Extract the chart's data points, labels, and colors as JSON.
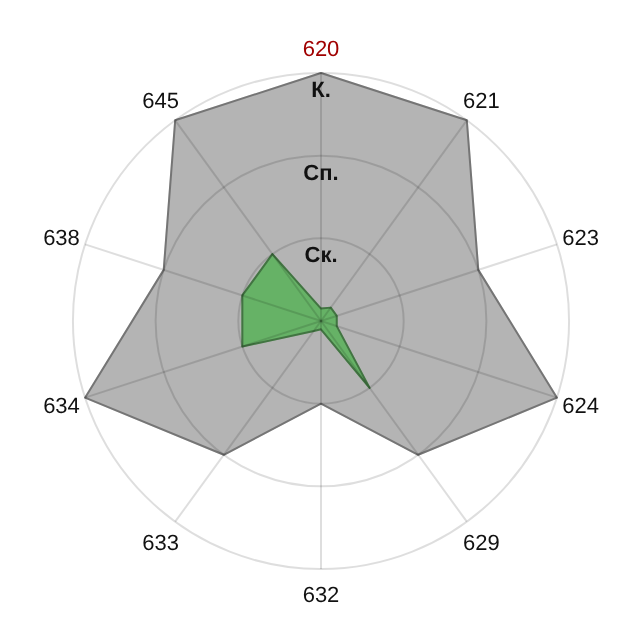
{
  "chart_data": {
    "type": "radar",
    "categories": [
      "620",
      "621",
      "623",
      "624",
      "629",
      "632",
      "633",
      "634",
      "638",
      "645"
    ],
    "series": [
      {
        "color": "#b4b4b4",
        "values": [
          3,
          3,
          2,
          3,
          2,
          1,
          2,
          3,
          2,
          3
        ]
      },
      {
        "color": "#66b266",
        "values": [
          0.15,
          0.2,
          0.2,
          0.2,
          1,
          0.1,
          0.15,
          1,
          1,
          1
        ]
      }
    ],
    "ylim": [
      0,
      3
    ],
    "yticks": [
      {
        "value": 1,
        "label": "Ск."
      },
      {
        "value": 2,
        "label": "Сп."
      },
      {
        "value": 3,
        "label": "К."
      }
    ],
    "grid": true
  }
}
